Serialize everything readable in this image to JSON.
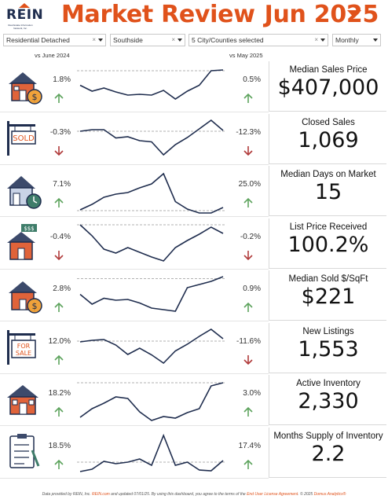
{
  "header": {
    "logo_text": "REIN",
    "logo_subtext": "Real Estate Information Network, Inc.",
    "title": "Market Review",
    "month": "Jun 2025",
    "accent_color": "#e0521b",
    "logo_color": "#1f2d4e"
  },
  "filters": [
    {
      "value": "Residential Detached",
      "clearable": true
    },
    {
      "value": "Southside",
      "clearable": true
    },
    {
      "value": "5 City/Counties selected",
      "clearable": true
    },
    {
      "value": "Monthly",
      "clearable": false
    }
  ],
  "comparison_labels": {
    "left": "vs June 2024",
    "right": "vs May 2025"
  },
  "metrics": [
    {
      "label": "Median Sales Price",
      "value": "$407,000",
      "yoy": "1.8%",
      "yoy_dir": "up",
      "mom": "0.5%",
      "mom_dir": "up",
      "icon": "house-money-icon",
      "trend": [
        0.55,
        0.4,
        0.48,
        0.38,
        0.3,
        0.32,
        0.3,
        0.42,
        0.2,
        0.4,
        0.55,
        0.92,
        0.94
      ],
      "ref": 0.92
    },
    {
      "label": "Closed Sales",
      "value": "1,069",
      "yoy": "-0.3%",
      "yoy_dir": "down",
      "mom": "-12.3%",
      "mom_dir": "down",
      "icon": "sold-sign-icon",
      "trend": [
        0.72,
        0.76,
        0.76,
        0.55,
        0.58,
        0.48,
        0.45,
        0.12,
        0.38,
        0.56,
        0.78,
        1.0,
        0.74
      ],
      "ref": 0.72
    },
    {
      "label": "Median Days on Market",
      "value": "15",
      "yoy": "7.1%",
      "yoy_dir": "up",
      "mom": "25.0%",
      "mom_dir": "up",
      "icon": "house-clock-icon",
      "trend": [
        0.04,
        0.18,
        0.36,
        0.44,
        0.48,
        0.6,
        0.7,
        0.96,
        0.25,
        0.06,
        -0.04,
        -0.04,
        0.1
      ],
      "ref": 0.02
    },
    {
      "label": "List Price Received",
      "value": "100.2%",
      "yoy": "-0.4%",
      "yoy_dir": "down",
      "mom": "-0.2%",
      "mom_dir": "down",
      "icon": "house-price-tag-icon",
      "trend": [
        1.0,
        0.72,
        0.38,
        0.28,
        0.42,
        0.3,
        0.18,
        0.08,
        0.42,
        0.6,
        0.76,
        0.94,
        0.78
      ],
      "ref": 1.0
    },
    {
      "label": "Median Sold $/SqFt",
      "value": "$221",
      "yoy": "2.8%",
      "yoy_dir": "up",
      "mom": "0.9%",
      "mom_dir": "up",
      "icon": "house-dollar-icon",
      "trend": [
        0.55,
        0.3,
        0.45,
        0.4,
        0.42,
        0.33,
        0.2,
        0.16,
        0.12,
        0.72,
        0.8,
        0.88,
        1.0
      ],
      "ref": 0.95
    },
    {
      "label": "New Listings",
      "value": "1,553",
      "yoy": "12.0%",
      "yoy_dir": "up",
      "mom": "-11.6%",
      "mom_dir": "down",
      "icon": "for-sale-sign-icon",
      "trend": [
        0.68,
        0.72,
        0.74,
        0.6,
        0.36,
        0.52,
        0.35,
        0.14,
        0.45,
        0.62,
        0.82,
        1.0,
        0.76
      ],
      "ref": 0.7
    },
    {
      "label": "Active Inventory",
      "value": "2,330",
      "yoy": "18.2%",
      "yoy_dir": "up",
      "mom": "3.0%",
      "mom_dir": "up",
      "icon": "house-inventory-icon",
      "trend": [
        0.08,
        0.3,
        0.44,
        0.6,
        0.56,
        0.22,
        0.0,
        0.1,
        0.06,
        0.2,
        0.3,
        0.88,
        0.96
      ],
      "ref": 0.96
    },
    {
      "label": "Months Supply of Inventory",
      "value": "2.2",
      "yoy": "18.5%",
      "yoy_dir": "up",
      "mom": "17.4%",
      "mom_dir": "up",
      "icon": "clipboard-checklist-icon",
      "trend": [
        0.04,
        0.1,
        0.3,
        0.24,
        0.28,
        0.36,
        0.2,
        0.96,
        0.2,
        0.28,
        0.08,
        0.06,
        0.32
      ],
      "ref": 0.28
    }
  ],
  "colors": {
    "up": "#5da35d",
    "down": "#b03a3a",
    "line": "#1f2d4e",
    "ref_line": "#999999"
  },
  "footer": {
    "pre": "Data provided by REIN, Inc. ",
    "link1": "REIN.com",
    "mid1": " and updated 07/01/25.  By using this dashboard, you agree to the terms of the ",
    "link2": "End User License Agreement",
    "mid2": ".  © 2025 ",
    "link3": "Domus Analytics®"
  }
}
